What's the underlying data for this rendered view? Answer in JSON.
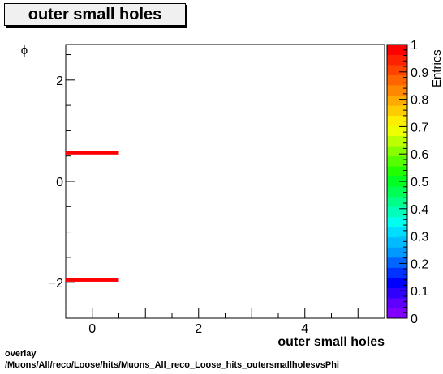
{
  "title": "outer small holes",
  "footer": {
    "line1": "overlay",
    "line2": "/Muons/All/reco/Loose/hits/Muons_All_reco_Loose_hits_outersmallholesvsPhi"
  },
  "chart_data": {
    "type": "heatmap",
    "title": "outer small holes",
    "xlabel": "outer small holes",
    "ylabel": "ϕ",
    "zlabel": "Entries",
    "xlim": [
      -0.5,
      5.5
    ],
    "ylim": [
      -2.7,
      2.7
    ],
    "zlim": [
      0,
      1
    ],
    "x_ticks": [
      0,
      2,
      4
    ],
    "y_ticks": [
      -2,
      0,
      2
    ],
    "z_ticks": [
      0,
      0.1,
      0.2,
      0.3,
      0.4,
      0.5,
      0.6,
      0.7,
      0.8,
      0.9,
      1
    ],
    "cells": [
      {
        "x0": -0.5,
        "x1": 0.5,
        "y0": 0.53,
        "y1": 0.6,
        "value": 1
      },
      {
        "x0": -0.5,
        "x1": 0.5,
        "y0": -1.98,
        "y1": -1.91,
        "value": 1
      }
    ],
    "colors": [
      "#7f00ff",
      "#5f00ff",
      "#3000ff",
      "#0000ff",
      "#0033ff",
      "#0066ff",
      "#0099ff",
      "#00bbff",
      "#00ddff",
      "#00ffee",
      "#00ffbb",
      "#00ff88",
      "#00ff55",
      "#00ff22",
      "#22ff00",
      "#55ff00",
      "#88ff00",
      "#bbff00",
      "#eeff00",
      "#ffee00",
      "#ffcc00",
      "#ffaa00",
      "#ff8800",
      "#ff6600",
      "#ff4400",
      "#ff2200",
      "#ff0000"
    ],
    "grid": false,
    "legend": "right colorbar"
  }
}
